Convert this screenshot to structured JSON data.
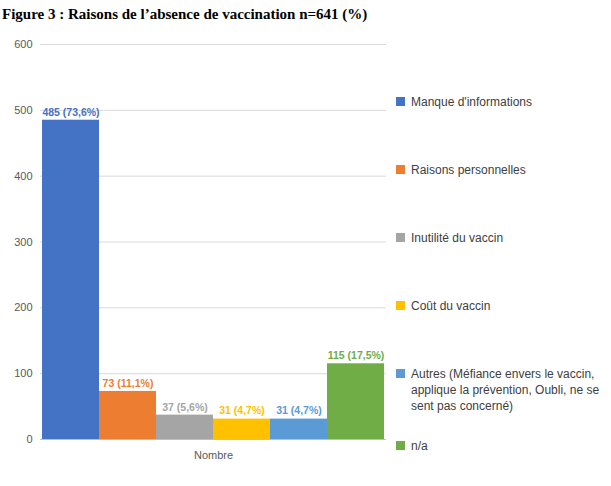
{
  "chart_data": {
    "type": "bar",
    "title": "Figure 3 : Raisons de l’absence de vaccination n=641 (%)",
    "categories": [
      "Nombre"
    ],
    "series": [
      {
        "name": "Manque d'informations",
        "color": "#4472c4",
        "values": [
          485
        ],
        "value_labels": [
          "485 (73,6%)"
        ]
      },
      {
        "name": "Raisons personnelles",
        "color": "#ed7d31",
        "values": [
          73
        ],
        "value_labels": [
          "73 (11,1%)"
        ]
      },
      {
        "name": "Inutilité du vaccin",
        "color": "#a5a5a5",
        "values": [
          37
        ],
        "value_labels": [
          "37 (5,6%)"
        ]
      },
      {
        "name": "Coût du vaccin",
        "color": "#ffc000",
        "values": [
          31
        ],
        "value_labels": [
          "31 (4,7%)"
        ]
      },
      {
        "name": "Autres (Méfiance envers le vaccin, applique la prévention, Oubli, ne se sent pas concerné)",
        "color": "#5b9bd5",
        "values": [
          31
        ],
        "value_labels": [
          "31 (4,7%)"
        ]
      },
      {
        "name": "n/a",
        "color": "#70ad47",
        "values": [
          115
        ],
        "value_labels": [
          "115 (17,5%)"
        ]
      }
    ],
    "ylim": [
      0,
      600
    ],
    "yticks": [
      0,
      100,
      200,
      300,
      400,
      500,
      600
    ],
    "grid": true,
    "legend": "right",
    "data_labels": true
  }
}
